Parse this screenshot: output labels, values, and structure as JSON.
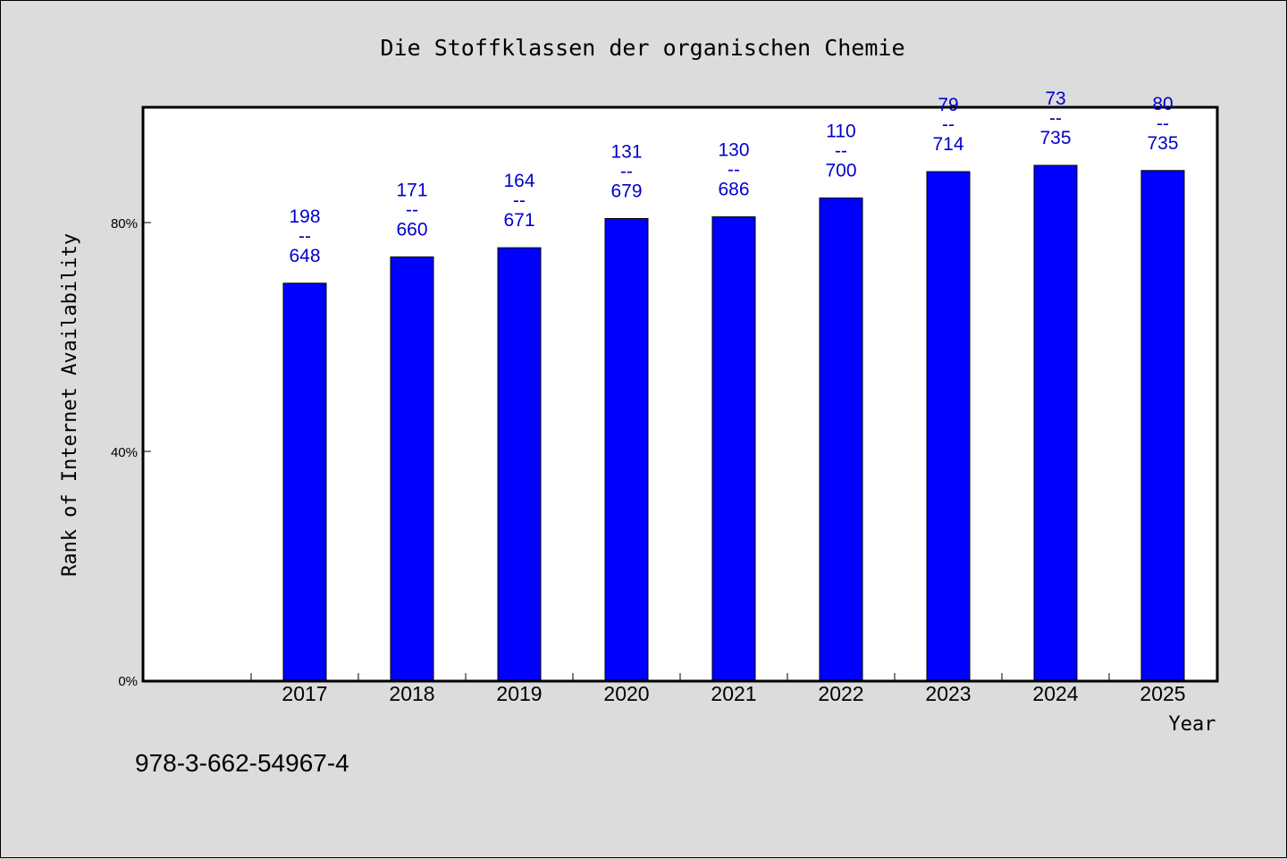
{
  "chart_data": {
    "type": "bar",
    "title": "Die Stoffklassen der organischen Chemie",
    "xlabel": "Year",
    "ylabel": "Rank of Internet Availability",
    "categories": [
      "2017",
      "2018",
      "2019",
      "2020",
      "2021",
      "2022",
      "2023",
      "2024",
      "2025"
    ],
    "series": [
      {
        "values": [
          69.4,
          74.0,
          75.6,
          80.7,
          81.0,
          84.3,
          88.9,
          90.0,
          89.1
        ]
      }
    ],
    "data_labels": [
      {
        "top": "198",
        "bottom": "648"
      },
      {
        "top": "171",
        "bottom": "660"
      },
      {
        "top": "164",
        "bottom": "671"
      },
      {
        "top": "131",
        "bottom": "679"
      },
      {
        "top": "130",
        "bottom": "686"
      },
      {
        "top": "110",
        "bottom": "700"
      },
      {
        "top": "79",
        "bottom": "714"
      },
      {
        "top": "73",
        "bottom": "735"
      },
      {
        "top": "80",
        "bottom": "735"
      }
    ],
    "label_separator": "--",
    "ylim": [
      0,
      100
    ],
    "yticks": [
      0,
      40,
      80
    ],
    "ytick_labels": [
      "0%",
      "40%",
      "80%"
    ],
    "bar_color": "#0000ff",
    "label_color": "#0000cc",
    "grid": false,
    "legend": "none"
  },
  "footer": {
    "isbn": "978-3-662-54967-4"
  }
}
